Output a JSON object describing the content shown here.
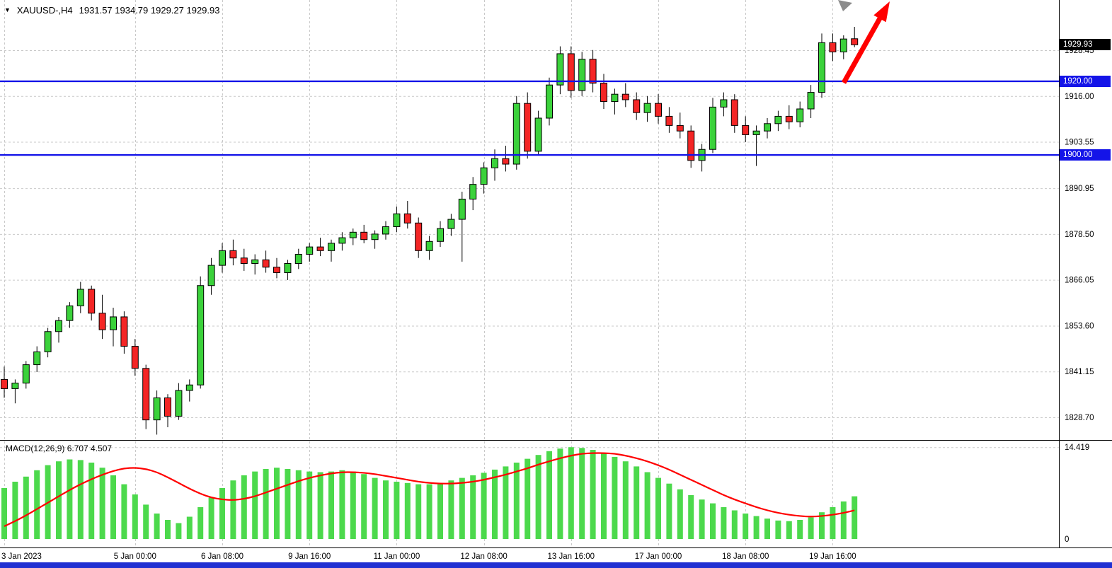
{
  "window": {
    "header": {
      "symbol": "XAUUSD-,H4",
      "ohlc": "1931.57 1934.79 1929.27 1929.93",
      "open": "1931.57",
      "high": "1934.79",
      "low": "1929.27",
      "close": "1929.93"
    },
    "bottom_bar_color": "#2130d2"
  },
  "colors": {
    "background": "#ffffff",
    "grid": "#c9c9c9",
    "bull": "#3bd23b",
    "bear": "#f42525",
    "wick": "#000000",
    "outline": "#000000",
    "hline": "#1414e8",
    "current_price_bg": "#000000",
    "axis_text": "#000000",
    "histogram": "#4cd94c",
    "signal_line": "#ff0000",
    "arrow": "#ff0000",
    "cursor_marker": "#8c8c8c",
    "separator": "#000000"
  },
  "price_axis": {
    "labels": [
      "1928.45",
      "1916.00",
      "1903.55",
      "1890.95",
      "1878.50",
      "1866.05",
      "1853.60",
      "1841.15",
      "1828.70"
    ],
    "values": [
      1928.45,
      1916.0,
      1903.55,
      1890.95,
      1878.5,
      1866.05,
      1853.6,
      1841.15,
      1828.7
    ],
    "current_price": "1929.93",
    "current_price_value": 1929.93
  },
  "hlines": [
    {
      "label": "1920.00",
      "value": 1920.0
    },
    {
      "label": "1900.00",
      "value": 1900.0
    }
  ],
  "time_axis": {
    "labels": [
      "3 Jan 2023",
      "5 Jan 00:00",
      "6 Jan 08:00",
      "9 Jan 16:00",
      "11 Jan 00:00",
      "12 Jan 08:00",
      "13 Jan 16:00",
      "17 Jan 00:00",
      "18 Jan 08:00",
      "19 Jan 16:00"
    ],
    "bar_index": [
      0,
      12,
      20,
      28,
      36,
      44,
      52,
      60,
      68,
      76
    ]
  },
  "macd": {
    "label": "MACD(12,26,9) 6.707 4.507",
    "name": "MACD(12,26,9)",
    "macd_value": "6.707",
    "signal_value": "4.507",
    "axis_max_label": "14.419",
    "axis_min_label": "0",
    "axis_max": 14.419
  },
  "annotations": {
    "trend_arrow_color": "#ff0000",
    "cursor_marker_color": "#8c8c8c"
  },
  "chart_data": {
    "type": "candlestick",
    "title": "XAUUSD-,H4",
    "symbol": "XAUUSD-",
    "timeframe": "H4",
    "x_labels": [
      "3 Jan 2023",
      "5 Jan 00:00",
      "6 Jan 08:00",
      "9 Jan 16:00",
      "11 Jan 00:00",
      "12 Jan 08:00",
      "13 Jan 16:00",
      "17 Jan 00:00",
      "18 Jan 08:00",
      "19 Jan 16:00"
    ],
    "x_label_bar_index": [
      0,
      12,
      20,
      28,
      36,
      44,
      52,
      60,
      68,
      76
    ],
    "ylim": [
      1824,
      1941
    ],
    "price_gridlines": [
      1928.45,
      1916.0,
      1903.55,
      1890.95,
      1878.5,
      1866.05,
      1853.6,
      1841.15,
      1828.7
    ],
    "horizontal_level_lines": [
      1920.0,
      1900.0
    ],
    "current_bar": {
      "open": 1931.57,
      "high": 1934.79,
      "low": 1929.27,
      "close": 1929.93
    },
    "candles": {
      "open": [
        1839,
        1836.5,
        1838,
        1843,
        1846.5,
        1852,
        1855,
        1859,
        1863.5,
        1857,
        1852.5,
        1856,
        1848,
        1842,
        1828,
        1834,
        1829,
        1836,
        1837.5,
        1864.5,
        1870,
        1874,
        1872,
        1870.5,
        1871.5,
        1869.5,
        1868,
        1870.5,
        1873,
        1875,
        1874,
        1876,
        1877.5,
        1879,
        1877,
        1878.5,
        1880.5,
        1884,
        1881.5,
        1874,
        1876.5,
        1880,
        1882.5,
        1888,
        1892,
        1896.5,
        1899,
        1897.5,
        1914,
        1901,
        1910,
        1919,
        1927.5,
        1917.5,
        1926,
        1919.5,
        1914.5,
        1916.5,
        1915,
        1911.5,
        1914,
        1910.5,
        1908,
        1906.5,
        1898.5,
        1901.5,
        1913,
        1915,
        1908,
        1905.5,
        1906.5,
        1908.5,
        1910.5,
        1909,
        1912.5,
        1917,
        1930.5,
        1928,
        1931.57
      ],
      "high": [
        1842.5,
        1839,
        1844,
        1848,
        1853,
        1856,
        1860,
        1865.5,
        1864.5,
        1862,
        1858.5,
        1857.5,
        1850,
        1843,
        1836,
        1835,
        1838,
        1839,
        1867,
        1872,
        1876,
        1877,
        1874.5,
        1873,
        1874,
        1872,
        1871.5,
        1874.5,
        1876,
        1877.5,
        1877,
        1879,
        1880,
        1881,
        1879.5,
        1882,
        1886,
        1887.5,
        1883,
        1878,
        1882,
        1884,
        1890,
        1894,
        1898,
        1901.5,
        1902.5,
        1916,
        1917,
        1912,
        1921,
        1929.5,
        1929.5,
        1928,
        1928.5,
        1922,
        1918,
        1919.5,
        1917,
        1916,
        1916.5,
        1913,
        1911.5,
        1908,
        1903,
        1915.5,
        1917,
        1916.5,
        1910.5,
        1908,
        1910,
        1912,
        1913.5,
        1914.5,
        1919,
        1933,
        1933,
        1932.5,
        1934.79
      ],
      "low": [
        1834,
        1832.5,
        1836.5,
        1841,
        1845,
        1849,
        1853,
        1857,
        1855,
        1850,
        1848,
        1846,
        1840,
        1825.5,
        1824,
        1826,
        1828,
        1833,
        1836.5,
        1862,
        1868,
        1870,
        1868.5,
        1867.5,
        1868,
        1866.5,
        1866,
        1869,
        1871,
        1872.5,
        1871,
        1874,
        1875.5,
        1876,
        1874.5,
        1877,
        1879,
        1880,
        1872,
        1871.5,
        1875,
        1878,
        1871,
        1885,
        1889.5,
        1893,
        1895.5,
        1896,
        1899,
        1900,
        1908,
        1916.5,
        1915.5,
        1916,
        1917,
        1912.5,
        1911,
        1913,
        1909.5,
        1909,
        1908.5,
        1906,
        1904.5,
        1896.5,
        1895.5,
        1900.5,
        1910.5,
        1906,
        1903.5,
        1897,
        1904.5,
        1906.5,
        1907,
        1907.5,
        1910,
        1915.5,
        1925.5,
        1926,
        1929.27
      ],
      "close": [
        1836.5,
        1838,
        1843,
        1846.5,
        1852,
        1855,
        1859,
        1863.5,
        1857,
        1852.5,
        1856,
        1848,
        1842,
        1828,
        1834,
        1829,
        1836,
        1837.5,
        1864.5,
        1870,
        1874,
        1872,
        1870.5,
        1871.5,
        1869.5,
        1868,
        1870.5,
        1873,
        1875,
        1874,
        1876,
        1877.5,
        1879,
        1877,
        1878.5,
        1880.5,
        1884,
        1881.5,
        1874,
        1876.5,
        1880,
        1882.5,
        1888,
        1892,
        1896.5,
        1899,
        1897.5,
        1914,
        1901,
        1910,
        1919,
        1927.5,
        1917.5,
        1926,
        1919.5,
        1914.5,
        1916.5,
        1915,
        1911.5,
        1914,
        1910.5,
        1908,
        1906.5,
        1898.5,
        1901.5,
        1913,
        1915,
        1908,
        1905.5,
        1906.5,
        1908.5,
        1910.5,
        1909,
        1912.5,
        1917,
        1930.5,
        1928,
        1931.5,
        1929.93
      ]
    },
    "indicator": {
      "type": "MACD",
      "params": [
        12,
        26,
        9
      ],
      "macd_value": 6.707,
      "signal_value": 4.507,
      "ylim": [
        0,
        14.419
      ],
      "histogram": [
        8.0,
        9.0,
        9.8,
        10.8,
        11.6,
        12.2,
        12.5,
        12.4,
        12.0,
        11.2,
        10.0,
        8.6,
        7.0,
        5.4,
        4.0,
        3.0,
        2.5,
        3.5,
        5.0,
        6.5,
        8.0,
        9.2,
        10.0,
        10.6,
        11.0,
        11.2,
        11.0,
        10.8,
        10.6,
        10.5,
        10.6,
        10.8,
        10.6,
        10.2,
        9.6,
        9.2,
        9.0,
        8.8,
        8.6,
        8.6,
        8.8,
        9.2,
        9.6,
        10.0,
        10.4,
        10.9,
        11.4,
        12.0,
        12.6,
        13.2,
        13.8,
        14.2,
        14.419,
        14.3,
        14.0,
        13.5,
        12.9,
        12.2,
        11.4,
        10.5,
        9.6,
        8.7,
        7.8,
        6.9,
        6.2,
        5.6,
        5.0,
        4.5,
        4.0,
        3.6,
        3.2,
        2.9,
        2.8,
        3.0,
        3.4,
        4.2,
        5.0,
        5.9,
        6.707
      ],
      "signal": [
        2.0,
        2.8,
        3.7,
        4.7,
        5.7,
        6.7,
        7.7,
        8.6,
        9.4,
        10.1,
        10.7,
        11.1,
        11.2,
        11.0,
        10.5,
        9.7,
        8.8,
        7.9,
        7.1,
        6.5,
        6.2,
        6.1,
        6.3,
        6.7,
        7.3,
        7.9,
        8.5,
        9.1,
        9.6,
        10.0,
        10.3,
        10.5,
        10.5,
        10.4,
        10.2,
        9.9,
        9.6,
        9.3,
        9.0,
        8.8,
        8.7,
        8.7,
        8.8,
        9.0,
        9.3,
        9.7,
        10.1,
        10.6,
        11.1,
        11.7,
        12.2,
        12.7,
        13.1,
        13.4,
        13.5,
        13.5,
        13.4,
        13.1,
        12.7,
        12.2,
        11.6,
        10.9,
        10.1,
        9.3,
        8.5,
        7.7,
        6.9,
        6.2,
        5.6,
        5.0,
        4.5,
        4.1,
        3.8,
        3.6,
        3.5,
        3.6,
        3.8,
        4.1,
        4.507
      ]
    }
  }
}
